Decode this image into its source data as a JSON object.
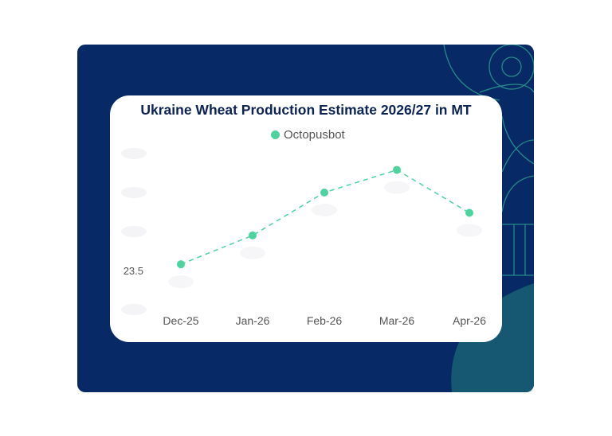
{
  "chart_data": {
    "type": "line",
    "title": "Ukraine Wheat Production Estimate 2026/27 in MT",
    "categories": [
      "Dec-25",
      "Jan-26",
      "Feb-26",
      "Mar-26",
      "Apr-26"
    ],
    "series": [
      {
        "name": "Octopusbot",
        "values": [
          23.58,
          23.95,
          24.5,
          24.79,
          24.24
        ],
        "color": "#4ed39f"
      }
    ],
    "ytick_visible": [
      {
        "value": 23.5,
        "label": "23.5"
      }
    ],
    "ylim": [
      23.0,
      25.0
    ],
    "xlabel": "",
    "ylabel": "",
    "grid": false,
    "legend": "top-center"
  },
  "colors": {
    "panel": "#072a66",
    "accent": "#4ed39f",
    "title": "#0b2355"
  }
}
